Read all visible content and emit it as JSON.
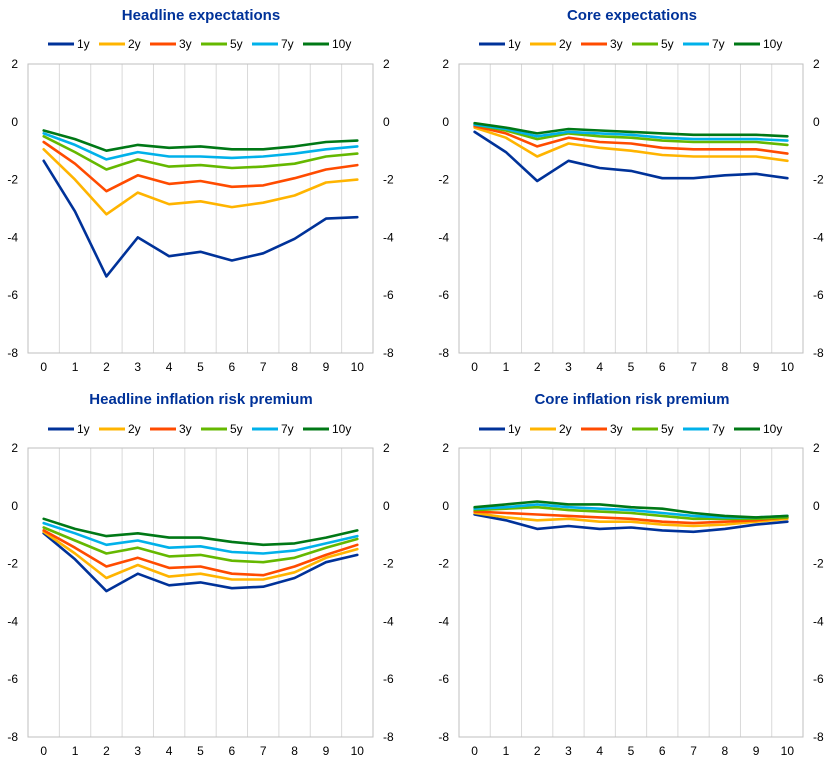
{
  "chart_data": [
    {
      "type": "line",
      "title": "Headline expectations",
      "x": [
        0,
        1,
        2,
        3,
        4,
        5,
        6,
        7,
        8,
        9,
        10
      ],
      "ylim": [
        -8,
        2
      ],
      "yticks": [
        2,
        0,
        -2,
        -4,
        -6,
        -8
      ],
      "xticks": [
        0,
        1,
        2,
        3,
        4,
        5,
        6,
        7,
        8,
        9,
        10
      ],
      "grid": true,
      "legend": "top",
      "series": [
        {
          "name": "1y",
          "color": "#003299",
          "values": [
            -1.35,
            -3.1,
            -5.35,
            -4.0,
            -4.65,
            -4.5,
            -4.8,
            -4.55,
            -4.05,
            -3.35,
            -3.3
          ]
        },
        {
          "name": "2y",
          "color": "#FFB400",
          "values": [
            -0.95,
            -2.0,
            -3.2,
            -2.45,
            -2.85,
            -2.75,
            -2.95,
            -2.8,
            -2.55,
            -2.1,
            -2.0
          ]
        },
        {
          "name": "3y",
          "color": "#FF4B00",
          "values": [
            -0.7,
            -1.45,
            -2.4,
            -1.85,
            -2.15,
            -2.05,
            -2.25,
            -2.2,
            -1.95,
            -1.65,
            -1.5
          ]
        },
        {
          "name": "5y",
          "color": "#65B800",
          "values": [
            -0.5,
            -1.05,
            -1.65,
            -1.3,
            -1.55,
            -1.5,
            -1.6,
            -1.55,
            -1.45,
            -1.2,
            -1.1
          ]
        },
        {
          "name": "7y",
          "color": "#00B1EA",
          "values": [
            -0.4,
            -0.8,
            -1.3,
            -1.05,
            -1.2,
            -1.2,
            -1.25,
            -1.2,
            -1.1,
            -0.95,
            -0.85
          ]
        },
        {
          "name": "10y",
          "color": "#007816",
          "values": [
            -0.3,
            -0.6,
            -1.0,
            -0.8,
            -0.9,
            -0.85,
            -0.95,
            -0.95,
            -0.85,
            -0.7,
            -0.65
          ]
        }
      ]
    },
    {
      "type": "line",
      "title": "Core expectations",
      "x": [
        0,
        1,
        2,
        3,
        4,
        5,
        6,
        7,
        8,
        9,
        10
      ],
      "ylim": [
        -8,
        2
      ],
      "yticks": [
        2,
        0,
        -2,
        -4,
        -6,
        -8
      ],
      "xticks": [
        0,
        1,
        2,
        3,
        4,
        5,
        6,
        7,
        8,
        9,
        10
      ],
      "grid": true,
      "legend": "top",
      "series": [
        {
          "name": "1y",
          "color": "#003299",
          "values": [
            -0.35,
            -1.05,
            -2.05,
            -1.35,
            -1.6,
            -1.7,
            -1.95,
            -1.95,
            -1.85,
            -1.8,
            -1.95
          ]
        },
        {
          "name": "2y",
          "color": "#FFB400",
          "values": [
            -0.2,
            -0.55,
            -1.2,
            -0.75,
            -0.9,
            -1.0,
            -1.15,
            -1.2,
            -1.2,
            -1.2,
            -1.35
          ]
        },
        {
          "name": "3y",
          "color": "#FF4B00",
          "values": [
            -0.15,
            -0.4,
            -0.85,
            -0.55,
            -0.7,
            -0.75,
            -0.9,
            -0.95,
            -0.95,
            -0.95,
            -1.1
          ]
        },
        {
          "name": "5y",
          "color": "#65B800",
          "values": [
            -0.1,
            -0.3,
            -0.6,
            -0.4,
            -0.5,
            -0.55,
            -0.65,
            -0.7,
            -0.7,
            -0.7,
            -0.8
          ]
        },
        {
          "name": "7y",
          "color": "#00B1EA",
          "values": [
            -0.1,
            -0.25,
            -0.5,
            -0.35,
            -0.4,
            -0.45,
            -0.55,
            -0.6,
            -0.6,
            -0.6,
            -0.65
          ]
        },
        {
          "name": "10y",
          "color": "#007816",
          "values": [
            -0.05,
            -0.2,
            -0.4,
            -0.25,
            -0.3,
            -0.35,
            -0.4,
            -0.45,
            -0.45,
            -0.45,
            -0.5
          ]
        }
      ]
    },
    {
      "type": "line",
      "title": "Headline inflation risk premium",
      "x": [
        0,
        1,
        2,
        3,
        4,
        5,
        6,
        7,
        8,
        9,
        10
      ],
      "ylim": [
        -8,
        2
      ],
      "yticks": [
        2,
        0,
        -2,
        -4,
        -6,
        -8
      ],
      "xticks": [
        0,
        1,
        2,
        3,
        4,
        5,
        6,
        7,
        8,
        9,
        10
      ],
      "grid": true,
      "legend": "top",
      "series": [
        {
          "name": "1y",
          "color": "#003299",
          "values": [
            -0.95,
            -1.85,
            -2.95,
            -2.35,
            -2.75,
            -2.65,
            -2.85,
            -2.8,
            -2.5,
            -1.95,
            -1.7
          ]
        },
        {
          "name": "2y",
          "color": "#FFB400",
          "values": [
            -0.9,
            -1.65,
            -2.5,
            -2.05,
            -2.45,
            -2.35,
            -2.55,
            -2.55,
            -2.3,
            -1.8,
            -1.5
          ]
        },
        {
          "name": "3y",
          "color": "#FF4B00",
          "values": [
            -0.85,
            -1.45,
            -2.1,
            -1.8,
            -2.15,
            -2.1,
            -2.35,
            -2.4,
            -2.1,
            -1.7,
            -1.35
          ]
        },
        {
          "name": "5y",
          "color": "#65B800",
          "values": [
            -0.75,
            -1.2,
            -1.65,
            -1.45,
            -1.75,
            -1.7,
            -1.9,
            -1.95,
            -1.8,
            -1.45,
            -1.15
          ]
        },
        {
          "name": "7y",
          "color": "#00B1EA",
          "values": [
            -0.6,
            -0.95,
            -1.35,
            -1.2,
            -1.45,
            -1.4,
            -1.6,
            -1.65,
            -1.55,
            -1.3,
            -1.05
          ]
        },
        {
          "name": "10y",
          "color": "#007816",
          "values": [
            -0.45,
            -0.8,
            -1.05,
            -0.95,
            -1.1,
            -1.1,
            -1.25,
            -1.35,
            -1.3,
            -1.1,
            -0.85
          ]
        }
      ]
    },
    {
      "type": "line",
      "title": "Core inflation risk premium",
      "x": [
        0,
        1,
        2,
        3,
        4,
        5,
        6,
        7,
        8,
        9,
        10
      ],
      "ylim": [
        -8,
        2
      ],
      "yticks": [
        2,
        0,
        -2,
        -4,
        -6,
        -8
      ],
      "xticks": [
        0,
        1,
        2,
        3,
        4,
        5,
        6,
        7,
        8,
        9,
        10
      ],
      "grid": true,
      "legend": "top",
      "series": [
        {
          "name": "1y",
          "color": "#003299",
          "values": [
            -0.3,
            -0.5,
            -0.8,
            -0.7,
            -0.8,
            -0.75,
            -0.85,
            -0.9,
            -0.8,
            -0.65,
            -0.55
          ]
        },
        {
          "name": "2y",
          "color": "#FFB400",
          "values": [
            -0.25,
            -0.4,
            -0.5,
            -0.45,
            -0.55,
            -0.55,
            -0.65,
            -0.7,
            -0.65,
            -0.55,
            -0.45
          ]
        },
        {
          "name": "3y",
          "color": "#FF4B00",
          "values": [
            -0.2,
            -0.25,
            -0.3,
            -0.35,
            -0.4,
            -0.45,
            -0.55,
            -0.6,
            -0.55,
            -0.5,
            -0.4
          ]
        },
        {
          "name": "5y",
          "color": "#65B800",
          "values": [
            -0.15,
            -0.1,
            -0.05,
            -0.15,
            -0.2,
            -0.25,
            -0.35,
            -0.45,
            -0.45,
            -0.45,
            -0.4
          ]
        },
        {
          "name": "7y",
          "color": "#00B1EA",
          "values": [
            -0.1,
            -0.05,
            0.05,
            -0.05,
            -0.1,
            -0.15,
            -0.25,
            -0.35,
            -0.4,
            -0.4,
            -0.35
          ]
        },
        {
          "name": "10y",
          "color": "#007816",
          "values": [
            -0.05,
            0.05,
            0.15,
            0.05,
            0.05,
            -0.05,
            -0.1,
            -0.25,
            -0.35,
            -0.4,
            -0.35
          ]
        }
      ]
    }
  ]
}
